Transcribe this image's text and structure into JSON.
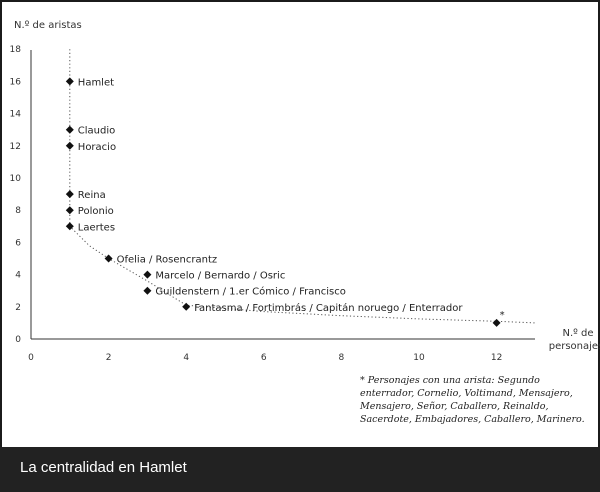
{
  "caption": "La centralidad en Hamlet",
  "footnote": "* Personajes con una arista: Segundo enterrador, Cornelio, Voltimand, Mensajero, Mensajero, Señor, Caballero, Reinaldo, Sacerdote, Embajadores, Caballero, Marinero.",
  "chart_data": {
    "type": "scatter",
    "title": "",
    "xlabel": "N.º de personajes",
    "ylabel": "N.º de aristas",
    "xlim": [
      0,
      13
    ],
    "ylim": [
      0,
      18
    ],
    "x_ticks": [
      0,
      2,
      4,
      6,
      8,
      10,
      12
    ],
    "y_ticks": [
      0,
      2,
      4,
      6,
      8,
      10,
      12,
      14,
      16,
      18
    ],
    "grid": false,
    "points": [
      {
        "x": 1,
        "y": 16,
        "label": "Hamlet"
      },
      {
        "x": 1,
        "y": 13,
        "label": "Claudio"
      },
      {
        "x": 1,
        "y": 12,
        "label": "Horacio"
      },
      {
        "x": 1,
        "y": 9,
        "label": "Reina"
      },
      {
        "x": 1,
        "y": 8,
        "label": "Polonio"
      },
      {
        "x": 1,
        "y": 7,
        "label": "Laertes"
      },
      {
        "x": 2,
        "y": 5,
        "label": "Ofelia / Rosencrantz"
      },
      {
        "x": 3,
        "y": 4,
        "label": "Marcelo / Bernardo / Osric"
      },
      {
        "x": 3,
        "y": 3,
        "label": "Guildenstern / 1.er Cómico / Francisco"
      },
      {
        "x": 4,
        "y": 2,
        "label": "Fantasma / Fortimbrás / Capitán noruego / Enterrador"
      },
      {
        "x": 12,
        "y": 1,
        "label": "*"
      }
    ],
    "trend_line": {
      "style": "dotted",
      "x": [
        1,
        1,
        1.5,
        2,
        3,
        4,
        6,
        8,
        10,
        12,
        13
      ],
      "y": [
        18,
        7,
        5.8,
        5,
        3.6,
        2.1,
        1.7,
        1.45,
        1.25,
        1.1,
        1.0
      ]
    }
  }
}
